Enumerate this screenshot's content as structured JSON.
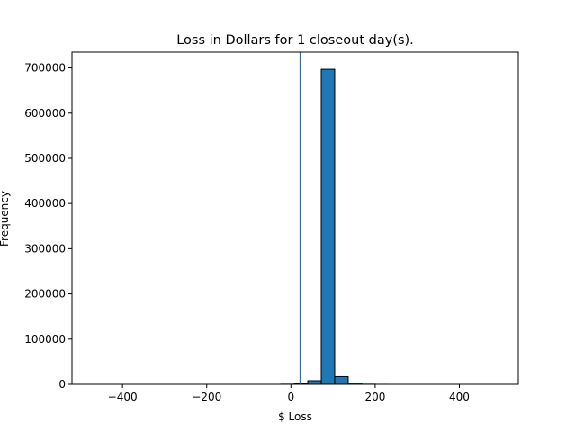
{
  "chart_data": {
    "type": "bar",
    "title": "Loss in Dollars for 1 closeout day(s).",
    "xlabel": "$ Loss",
    "ylabel": "Frequency",
    "xlim": [
      -520,
      540
    ],
    "ylim": [
      0,
      735000
    ],
    "x_ticks": [
      -400,
      -200,
      0,
      200,
      400
    ],
    "x_tick_labels": [
      "−400",
      "−200",
      "0",
      "200",
      "400"
    ],
    "y_ticks": [
      0,
      100000,
      200000,
      300000,
      400000,
      500000,
      600000,
      700000
    ],
    "y_tick_labels": [
      "0",
      "100000",
      "200000",
      "300000",
      "400000",
      "500000",
      "600000",
      "700000"
    ],
    "bin_start": -472,
    "bin_width": 32,
    "values": [
      0,
      0,
      0,
      0,
      0,
      0,
      0,
      0,
      0,
      0,
      0,
      0,
      0,
      0,
      300,
      1500,
      8000,
      697000,
      17000,
      2500,
      300,
      50,
      0,
      0,
      0,
      0,
      0,
      0,
      0,
      0
    ],
    "vline_x": 22,
    "bar_color": "#1f77b4",
    "line_color": "#1f77b4",
    "grid": false
  }
}
